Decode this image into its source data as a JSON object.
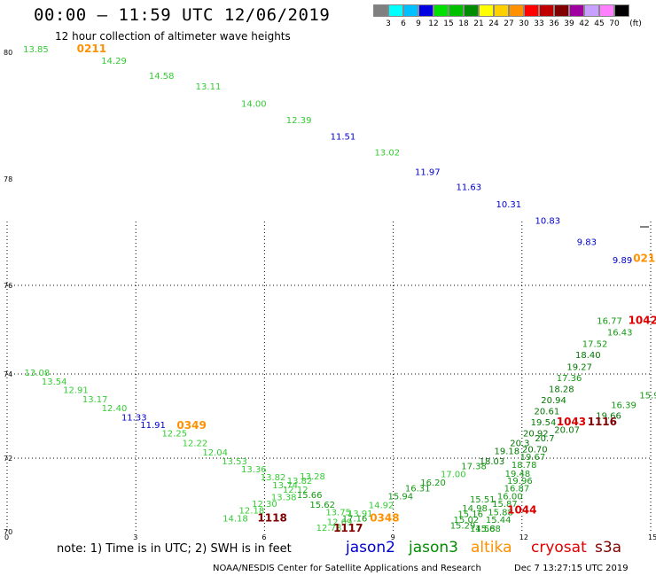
{
  "header": {
    "title": "00:00 – 11:59 UTC 12/06/2019",
    "subtitle": "12 hour collection of altimeter wave heights"
  },
  "legend": {
    "unit": "(ft)",
    "bins": [
      {
        "label": "3",
        "color": "#808080"
      },
      {
        "label": "6",
        "color": "#00ffff"
      },
      {
        "label": "9",
        "color": "#00c0ff"
      },
      {
        "label": "12",
        "color": "#0000e0"
      },
      {
        "label": "15",
        "color": "#00e000"
      },
      {
        "label": "18",
        "color": "#00c000"
      },
      {
        "label": "21",
        "color": "#008c00"
      },
      {
        "label": "24",
        "color": "#ffff00"
      },
      {
        "label": "27",
        "color": "#ffd000"
      },
      {
        "label": "30",
        "color": "#ff9000"
      },
      {
        "label": "33",
        "color": "#ff0000"
      },
      {
        "label": "36",
        "color": "#c00000"
      },
      {
        "label": "39",
        "color": "#800000"
      },
      {
        "label": "42",
        "color": "#a000a0"
      },
      {
        "label": "45",
        "color": "#c8a0ff"
      },
      {
        "label": "70",
        "color": "#ff80ff"
      },
      {
        "label": "",
        "color": "#000000"
      }
    ]
  },
  "footer": {
    "note": "note:  1) Time is in UTC;  2) SWH is in feet",
    "satellites": [
      {
        "name": "jason2",
        "color": "#0000cc"
      },
      {
        "name": "jason3",
        "color": "#008c00"
      },
      {
        "name": "altika",
        "color": "#ff9000"
      },
      {
        "name": "cryosat",
        "color": "#dd0000"
      },
      {
        "name": "s3a",
        "color": "#800000"
      }
    ],
    "credit": "NOAA/NESDIS Center for Satellite Applications and Research",
    "date": "Dec  7 13:27:15 UTC 2019"
  },
  "chart_data": {
    "type": "scatter",
    "x_ticks": [
      "0",
      "3",
      "6",
      "9",
      "12",
      "15"
    ],
    "y_ticks": [
      "70",
      "72",
      "74",
      "76",
      "78",
      "80"
    ],
    "colors": {
      "light": "#33cc33",
      "mid": "#119911",
      "dark": "#007700",
      "blue": "#0000cc",
      "orange": "#ff9000",
      "red": "#dd0000",
      "maroon": "#800000"
    },
    "labels": [
      {
        "t": "13.85",
        "x": 0.67,
        "y": 80.0,
        "c": "light"
      },
      {
        "t": "0211",
        "x": 1.97,
        "y": 80.0,
        "c": "orange"
      },
      {
        "t": "14.29",
        "x": 2.49,
        "y": 79.82,
        "c": "light"
      },
      {
        "t": "14.58",
        "x": 3.6,
        "y": 79.58,
        "c": "light"
      },
      {
        "t": "13.11",
        "x": 4.69,
        "y": 79.41,
        "c": "light"
      },
      {
        "t": "14.00",
        "x": 5.75,
        "y": 79.14,
        "c": "light"
      },
      {
        "t": "12.39",
        "x": 6.8,
        "y": 78.88,
        "c": "light"
      },
      {
        "t": "11.51",
        "x": 7.83,
        "y": 78.62,
        "c": "blue"
      },
      {
        "t": "13.02",
        "x": 8.86,
        "y": 78.37,
        "c": "light"
      },
      {
        "t": "11.97",
        "x": 9.8,
        "y": 78.06,
        "c": "blue"
      },
      {
        "t": "11.63",
        "x": 10.76,
        "y": 77.79,
        "c": "blue"
      },
      {
        "t": "10.31",
        "x": 11.69,
        "y": 77.47,
        "c": "blue"
      },
      {
        "t": "10.83",
        "x": 12.6,
        "y": 77.16,
        "c": "blue"
      },
      {
        "t": "9.83",
        "x": 13.51,
        "y": 76.76,
        "c": "blue"
      },
      {
        "t": "9.89",
        "x": 14.34,
        "y": 76.42,
        "c": "blue"
      },
      {
        "t": "021",
        "x": 14.85,
        "y": 76.44,
        "c": "orange"
      },
      {
        "t": "16.77",
        "x": 14.04,
        "y": 75.13,
        "c": "mid"
      },
      {
        "t": "1042",
        "x": 14.82,
        "y": 75.13,
        "c": "red"
      },
      {
        "t": "16.43",
        "x": 14.28,
        "y": 74.87,
        "c": "mid"
      },
      {
        "t": "17.52",
        "x": 13.7,
        "y": 74.61,
        "c": "mid"
      },
      {
        "t": "18.40",
        "x": 13.54,
        "y": 74.36,
        "c": "dark"
      },
      {
        "t": "19.27",
        "x": 13.34,
        "y": 74.09,
        "c": "dark"
      },
      {
        "t": "17.36",
        "x": 13.1,
        "y": 73.83,
        "c": "mid"
      },
      {
        "t": "18.28",
        "x": 12.92,
        "y": 73.57,
        "c": "dark"
      },
      {
        "t": "20.94",
        "x": 12.74,
        "y": 73.31,
        "c": "dark"
      },
      {
        "t": "20.61",
        "x": 12.58,
        "y": 73.04,
        "c": "dark"
      },
      {
        "t": "19.66",
        "x": 14.02,
        "y": 72.94,
        "c": "dark"
      },
      {
        "t": "16.39",
        "x": 14.37,
        "y": 73.19,
        "c": "mid"
      },
      {
        "t": "15.9",
        "x": 14.97,
        "y": 73.42,
        "c": "mid"
      },
      {
        "t": "19.54",
        "x": 12.5,
        "y": 72.78,
        "c": "dark"
      },
      {
        "t": "1043",
        "x": 13.15,
        "y": 72.78,
        "c": "red"
      },
      {
        "t": "1116",
        "x": 13.87,
        "y": 72.78,
        "c": "maroon"
      },
      {
        "t": "20.07",
        "x": 13.05,
        "y": 72.6,
        "c": "dark"
      },
      {
        "t": "20.92",
        "x": 12.32,
        "y": 72.52,
        "c": "dark"
      },
      {
        "t": "20.7",
        "x": 12.53,
        "y": 72.4,
        "c": "dark"
      },
      {
        "t": "20.3",
        "x": 11.95,
        "y": 72.28,
        "c": "dark"
      },
      {
        "t": "19.18",
        "x": 11.65,
        "y": 72.1,
        "c": "dark"
      },
      {
        "t": "20.70",
        "x": 12.3,
        "y": 72.14,
        "c": "dark"
      },
      {
        "t": "19.67",
        "x": 12.25,
        "y": 71.95,
        "c": "mid"
      },
      {
        "t": "18.03",
        "x": 11.3,
        "y": 71.83,
        "c": "dark"
      },
      {
        "t": "18.78",
        "x": 12.05,
        "y": 71.73,
        "c": "mid"
      },
      {
        "t": "17.38",
        "x": 10.88,
        "y": 71.7,
        "c": "mid"
      },
      {
        "t": "19.48",
        "x": 11.9,
        "y": 71.5,
        "c": "mid"
      },
      {
        "t": "17.00",
        "x": 10.4,
        "y": 71.48,
        "c": "light"
      },
      {
        "t": "19.96",
        "x": 11.95,
        "y": 71.3,
        "c": "mid"
      },
      {
        "t": "16.20",
        "x": 9.93,
        "y": 71.25,
        "c": "mid"
      },
      {
        "t": "16.87",
        "x": 11.88,
        "y": 71.1,
        "c": "mid"
      },
      {
        "t": "16.31",
        "x": 9.57,
        "y": 71.1,
        "c": "mid"
      },
      {
        "t": "15.94",
        "x": 9.17,
        "y": 70.88,
        "c": "mid"
      },
      {
        "t": "16.00",
        "x": 11.72,
        "y": 70.88,
        "c": "mid"
      },
      {
        "t": "14.92",
        "x": 8.72,
        "y": 70.64,
        "c": "light"
      },
      {
        "t": "15.87",
        "x": 11.6,
        "y": 70.68,
        "c": "mid"
      },
      {
        "t": "15.88",
        "x": 11.5,
        "y": 70.45,
        "c": "mid"
      },
      {
        "t": "13.91",
        "x": 8.23,
        "y": 70.41,
        "c": "light"
      },
      {
        "t": "15.44",
        "x": 11.45,
        "y": 70.24,
        "c": "mid"
      },
      {
        "t": "12.69",
        "x": 7.75,
        "y": 70.18,
        "c": "light"
      },
      {
        "t": "12.78",
        "x": 7.5,
        "y": 70.02,
        "c": "light"
      },
      {
        "t": "15.68",
        "x": 11.21,
        "y": 70.0,
        "c": "mid"
      },
      {
        "t": "1117",
        "x": 7.95,
        "y": 69.93,
        "c": "maroon"
      },
      {
        "t": "14.58",
        "x": 11.08,
        "y": 69.8,
        "c": "mid"
      },
      {
        "t": "13.08",
        "x": 0.7,
        "y": 73.96,
        "c": "light"
      },
      {
        "t": "13.54",
        "x": 1.1,
        "y": 73.75,
        "c": "light"
      },
      {
        "t": "12.91",
        "x": 1.6,
        "y": 73.55,
        "c": "light"
      },
      {
        "t": "13.17",
        "x": 2.05,
        "y": 73.33,
        "c": "light"
      },
      {
        "t": "12.40",
        "x": 2.5,
        "y": 73.12,
        "c": "light"
      },
      {
        "t": "11.33",
        "x": 2.96,
        "y": 72.9,
        "c": "blue"
      },
      {
        "t": "11.91",
        "x": 3.4,
        "y": 72.72,
        "c": "blue"
      },
      {
        "t": "0349",
        "x": 4.3,
        "y": 72.7,
        "c": "orange"
      },
      {
        "t": "12.25",
        "x": 3.9,
        "y": 72.52,
        "c": "light"
      },
      {
        "t": "12.22",
        "x": 4.38,
        "y": 72.28,
        "c": "light"
      },
      {
        "t": "12.04",
        "x": 4.85,
        "y": 72.06,
        "c": "light"
      },
      {
        "t": "13.53",
        "x": 5.3,
        "y": 71.83,
        "c": "light"
      },
      {
        "t": "13.36",
        "x": 5.75,
        "y": 71.62,
        "c": "light"
      },
      {
        "t": "13.82",
        "x": 6.2,
        "y": 71.4,
        "c": "light"
      },
      {
        "t": "13.74",
        "x": 6.48,
        "y": 71.18,
        "c": "light"
      },
      {
        "t": "13.82",
        "x": 6.82,
        "y": 71.3,
        "c": "light"
      },
      {
        "t": "13.28",
        "x": 7.12,
        "y": 71.42,
        "c": "light"
      },
      {
        "t": "12.12",
        "x": 6.72,
        "y": 71.06,
        "c": "light"
      },
      {
        "t": "13.38",
        "x": 6.45,
        "y": 70.86,
        "c": "light"
      },
      {
        "t": "15.66",
        "x": 7.05,
        "y": 70.92,
        "c": "mid"
      },
      {
        "t": "15.62",
        "x": 7.35,
        "y": 70.65,
        "c": "mid"
      },
      {
        "t": "12.30",
        "x": 6.0,
        "y": 70.68,
        "c": "light"
      },
      {
        "t": "12.18",
        "x": 5.7,
        "y": 70.5,
        "c": "light"
      },
      {
        "t": "13.75",
        "x": 7.72,
        "y": 70.44,
        "c": "light"
      },
      {
        "t": "14.18",
        "x": 5.32,
        "y": 70.28,
        "c": "light"
      },
      {
        "t": "1118",
        "x": 6.18,
        "y": 70.28,
        "c": "maroon"
      },
      {
        "t": "17.16",
        "x": 8.1,
        "y": 70.28,
        "c": "mid"
      },
      {
        "t": "0348",
        "x": 8.8,
        "y": 70.28,
        "c": "orange"
      },
      {
        "t": "14.98",
        "x": 10.9,
        "y": 70.55,
        "c": "mid"
      },
      {
        "t": "15.16",
        "x": 10.8,
        "y": 70.4,
        "c": "mid"
      },
      {
        "t": "15.02",
        "x": 10.7,
        "y": 70.24,
        "c": "mid"
      },
      {
        "t": "15.29",
        "x": 10.62,
        "y": 70.08,
        "c": "mid"
      },
      {
        "t": "1044",
        "x": 12.0,
        "y": 70.5,
        "c": "red"
      },
      {
        "t": "15.51",
        "x": 11.08,
        "y": 70.8,
        "c": "mid"
      }
    ]
  }
}
